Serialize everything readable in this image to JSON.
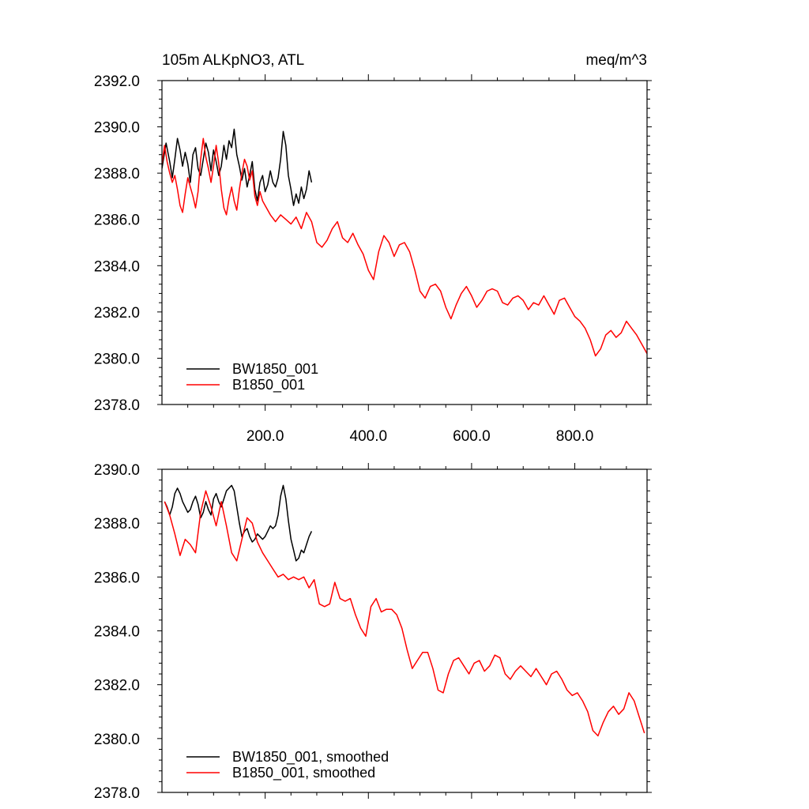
{
  "chart_data": [
    {
      "type": "line",
      "title": "105m ALKpNO3, ATL",
      "units": "meq/m^3",
      "xlim": [
        0,
        940
      ],
      "ylim": [
        2378,
        2392
      ],
      "ytick_values": [
        2378,
        2380,
        2382,
        2384,
        2386,
        2388,
        2390,
        2392
      ],
      "ytick_labels": [
        "2378.0",
        "2380.0",
        "2382.0",
        "2384.0",
        "2386.0",
        "2388.0",
        "2390.0",
        "2392.0"
      ],
      "xtick_values": [
        200,
        400,
        600,
        800
      ],
      "xtick_labels": [
        "200.0",
        "400.0",
        "600.0",
        "800.0"
      ],
      "legend_position": "bottom-left",
      "series": [
        {
          "name": "BW1850_001",
          "color": "#000000",
          "x": [
            0,
            8,
            15,
            20,
            25,
            30,
            35,
            40,
            45,
            50,
            55,
            60,
            65,
            70,
            75,
            80,
            85,
            90,
            95,
            100,
            105,
            110,
            115,
            120,
            125,
            130,
            135,
            140,
            145,
            150,
            155,
            160,
            165,
            170,
            175,
            180,
            185,
            190,
            195,
            200,
            205,
            210,
            215,
            220,
            225,
            230,
            235,
            240,
            245,
            250,
            255,
            260,
            265,
            270,
            275,
            280,
            285,
            290
          ],
          "y": [
            2388.2,
            2389.3,
            2388.5,
            2387.8,
            2388.6,
            2389.5,
            2389.0,
            2388.3,
            2388.9,
            2388.4,
            2387.6,
            2388.8,
            2389.1,
            2388.2,
            2387.9,
            2388.6,
            2389.3,
            2388.9,
            2388.1,
            2389.0,
            2388.5,
            2387.9,
            2388.3,
            2389.2,
            2388.6,
            2389.4,
            2389.1,
            2389.9,
            2388.8,
            2388.3,
            2387.7,
            2388.2,
            2387.4,
            2387.9,
            2388.5,
            2387.3,
            2386.8,
            2387.6,
            2387.9,
            2387.2,
            2387.5,
            2388.1,
            2387.6,
            2387.4,
            2387.8,
            2388.6,
            2389.8,
            2389.2,
            2387.9,
            2387.3,
            2386.6,
            2387.1,
            2386.7,
            2387.4,
            2386.9,
            2387.3,
            2388.1,
            2387.6
          ]
        },
        {
          "name": "B1850_001",
          "color": "#ff0000",
          "x": [
            0,
            5,
            10,
            15,
            20,
            25,
            30,
            35,
            40,
            45,
            50,
            55,
            60,
            65,
            70,
            75,
            80,
            85,
            90,
            95,
            100,
            105,
            110,
            115,
            120,
            125,
            130,
            135,
            140,
            145,
            150,
            155,
            160,
            165,
            170,
            175,
            180,
            185,
            190,
            195,
            200,
            210,
            220,
            230,
            240,
            250,
            260,
            270,
            280,
            290,
            300,
            310,
            320,
            330,
            340,
            350,
            360,
            370,
            380,
            390,
            400,
            410,
            420,
            430,
            440,
            450,
            460,
            470,
            480,
            490,
            500,
            510,
            520,
            530,
            540,
            550,
            560,
            570,
            580,
            590,
            600,
            610,
            620,
            630,
            640,
            650,
            660,
            670,
            680,
            690,
            700,
            710,
            720,
            730,
            740,
            750,
            760,
            770,
            780,
            790,
            800,
            810,
            820,
            830,
            840,
            850,
            860,
            870,
            880,
            890,
            900,
            910,
            920,
            930,
            940
          ],
          "y": [
            2388.4,
            2389.2,
            2388.5,
            2388.0,
            2387.6,
            2387.9,
            2387.3,
            2386.6,
            2386.3,
            2387.1,
            2387.8,
            2387.4,
            2387.0,
            2386.5,
            2387.2,
            2388.6,
            2389.5,
            2388.7,
            2388.2,
            2387.6,
            2388.3,
            2389.2,
            2388.4,
            2387.3,
            2386.5,
            2386.2,
            2386.9,
            2387.4,
            2386.8,
            2386.4,
            2387.3,
            2388.0,
            2388.6,
            2388.3,
            2387.7,
            2388.1,
            2387.0,
            2386.6,
            2387.2,
            2386.8,
            2386.6,
            2386.2,
            2385.9,
            2386.2,
            2386.0,
            2385.8,
            2386.1,
            2385.6,
            2386.3,
            2385.9,
            2385.0,
            2384.8,
            2385.1,
            2385.6,
            2385.9,
            2385.2,
            2385.0,
            2385.4,
            2384.9,
            2384.5,
            2383.8,
            2383.4,
            2384.6,
            2385.3,
            2385.0,
            2384.4,
            2384.9,
            2385.0,
            2384.6,
            2383.8,
            2382.9,
            2382.6,
            2383.1,
            2383.2,
            2382.9,
            2382.2,
            2381.7,
            2382.3,
            2382.8,
            2383.1,
            2382.7,
            2382.2,
            2382.5,
            2382.9,
            2383.0,
            2382.9,
            2382.4,
            2382.3,
            2382.6,
            2382.7,
            2382.5,
            2382.1,
            2382.4,
            2382.3,
            2382.7,
            2382.3,
            2381.9,
            2382.5,
            2382.6,
            2382.2,
            2381.8,
            2381.6,
            2381.3,
            2380.8,
            2380.1,
            2380.4,
            2381.0,
            2381.2,
            2380.9,
            2381.1,
            2381.6,
            2381.3,
            2381.0,
            2380.6,
            2380.2
          ]
        }
      ]
    },
    {
      "type": "line",
      "title": "",
      "xlim": [
        0,
        940
      ],
      "ylim": [
        2378,
        2390
      ],
      "ytick_values": [
        2378,
        2380,
        2382,
        2384,
        2386,
        2388,
        2390
      ],
      "ytick_labels": [
        "2378.0",
        "2380.0",
        "2382.0",
        "2384.0",
        "2386.0",
        "2388.0",
        "2390.0"
      ],
      "xtick_values": [
        200,
        400,
        600,
        800
      ],
      "legend_position": "bottom-left",
      "series": [
        {
          "name": "BW1850_001, smoothed",
          "color": "#000000",
          "x": [
            5,
            10,
            15,
            20,
            25,
            30,
            35,
            40,
            45,
            50,
            55,
            60,
            65,
            70,
            75,
            80,
            85,
            90,
            95,
            100,
            105,
            110,
            115,
            120,
            125,
            130,
            135,
            140,
            145,
            150,
            155,
            160,
            165,
            170,
            175,
            180,
            185,
            190,
            195,
            200,
            205,
            210,
            215,
            220,
            225,
            230,
            235,
            240,
            245,
            250,
            255,
            260,
            265,
            270,
            275,
            280,
            285,
            290
          ],
          "y": [
            2388.8,
            2388.6,
            2388.3,
            2388.6,
            2389.1,
            2389.3,
            2389.1,
            2388.8,
            2388.6,
            2388.4,
            2388.5,
            2388.8,
            2389.0,
            2388.7,
            2388.2,
            2388.4,
            2388.8,
            2388.5,
            2388.3,
            2388.9,
            2389.1,
            2388.8,
            2388.6,
            2388.9,
            2389.2,
            2389.3,
            2389.4,
            2389.2,
            2388.6,
            2388.0,
            2387.5,
            2387.7,
            2387.8,
            2387.5,
            2387.3,
            2387.4,
            2387.6,
            2387.5,
            2387.4,
            2387.5,
            2387.7,
            2387.9,
            2387.8,
            2387.9,
            2388.3,
            2389.0,
            2389.4,
            2388.9,
            2388.1,
            2387.4,
            2387.0,
            2386.6,
            2386.7,
            2387.0,
            2386.9,
            2387.2,
            2387.5,
            2387.7
          ]
        },
        {
          "name": "B1850_001, smoothed",
          "color": "#ff0000",
          "x": [
            5,
            15,
            25,
            35,
            45,
            55,
            65,
            75,
            85,
            95,
            105,
            115,
            125,
            135,
            145,
            155,
            165,
            175,
            185,
            195,
            205,
            215,
            225,
            235,
            245,
            255,
            265,
            275,
            285,
            295,
            305,
            315,
            325,
            335,
            345,
            355,
            365,
            375,
            385,
            395,
            405,
            415,
            425,
            435,
            445,
            455,
            465,
            475,
            485,
            495,
            505,
            515,
            525,
            535,
            545,
            555,
            565,
            575,
            585,
            595,
            605,
            615,
            625,
            635,
            645,
            655,
            665,
            675,
            685,
            695,
            705,
            715,
            725,
            735,
            745,
            755,
            765,
            775,
            785,
            795,
            805,
            815,
            825,
            835,
            845,
            855,
            865,
            875,
            885,
            895,
            905,
            915,
            925,
            935
          ],
          "y": [
            2388.8,
            2388.3,
            2387.6,
            2386.8,
            2387.4,
            2387.2,
            2386.9,
            2388.4,
            2389.2,
            2388.6,
            2387.9,
            2388.8,
            2387.9,
            2386.9,
            2386.6,
            2387.4,
            2388.2,
            2388.0,
            2387.3,
            2386.9,
            2386.6,
            2386.3,
            2386.0,
            2386.1,
            2385.9,
            2386.0,
            2385.9,
            2386.0,
            2385.6,
            2385.9,
            2385.0,
            2384.9,
            2385.0,
            2385.8,
            2385.2,
            2385.1,
            2385.2,
            2384.6,
            2384.1,
            2383.8,
            2384.9,
            2385.2,
            2384.7,
            2384.8,
            2384.8,
            2384.6,
            2384.1,
            2383.3,
            2382.6,
            2382.9,
            2383.2,
            2383.2,
            2382.6,
            2381.8,
            2381.7,
            2382.4,
            2382.9,
            2383.0,
            2382.7,
            2382.4,
            2382.8,
            2382.9,
            2382.5,
            2382.7,
            2383.1,
            2383.0,
            2382.4,
            2382.2,
            2382.5,
            2382.7,
            2382.5,
            2382.3,
            2382.6,
            2382.3,
            2382.0,
            2382.4,
            2382.5,
            2382.2,
            2381.8,
            2381.6,
            2381.7,
            2381.4,
            2381.0,
            2380.3,
            2380.1,
            2380.6,
            2381.0,
            2381.2,
            2380.9,
            2381.1,
            2381.7,
            2381.4,
            2380.8,
            2380.2
          ]
        }
      ]
    }
  ]
}
